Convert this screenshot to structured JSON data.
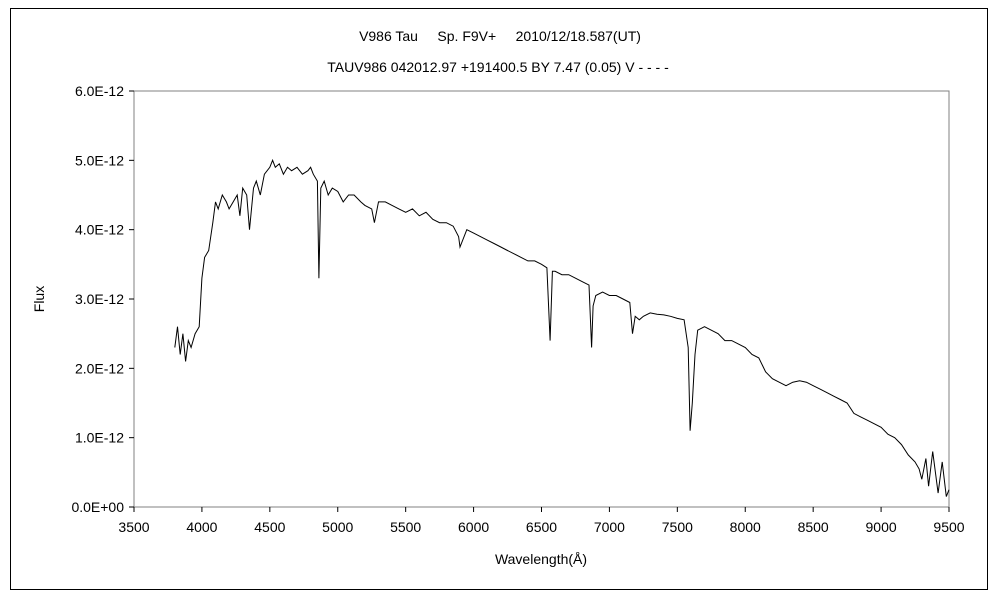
{
  "chart_data": {
    "type": "line",
    "title": "V986 Tau     Sp. F9V+     2010/12/18.587(UT)",
    "subtitle": "TAUV986 042012.97 +191400.5 BY 7.47 (0.05) V - - - -",
    "xlabel": "Wavelength(Å)",
    "ylabel": "Flux",
    "xlim": [
      3500,
      9500
    ],
    "ylim": [
      0,
      6e-12
    ],
    "xticks": [
      "3500",
      "4000",
      "4500",
      "5000",
      "5500",
      "6000",
      "6500",
      "7000",
      "7500",
      "8000",
      "8500",
      "9000",
      "9500"
    ],
    "yticks": [
      "0.0E+00",
      "1.0E-12",
      "2.0E-12",
      "3.0E-12",
      "4.0E-12",
      "5.0E-12",
      "6.0E-12"
    ],
    "grid": false,
    "series": [
      {
        "color": "#000000",
        "x": [
          3800,
          3820,
          3840,
          3860,
          3880,
          3900,
          3920,
          3950,
          3980,
          4000,
          4020,
          4050,
          4080,
          4100,
          4120,
          4150,
          4180,
          4200,
          4230,
          4260,
          4280,
          4300,
          4330,
          4350,
          4380,
          4400,
          4430,
          4460,
          4500,
          4520,
          4540,
          4570,
          4600,
          4630,
          4660,
          4700,
          4740,
          4780,
          4800,
          4820,
          4850,
          4861,
          4875,
          4900,
          4930,
          4960,
          5000,
          5040,
          5080,
          5120,
          5170,
          5200,
          5250,
          5270,
          5300,
          5350,
          5400,
          5450,
          5500,
          5550,
          5600,
          5650,
          5700,
          5750,
          5800,
          5850,
          5890,
          5900,
          5950,
          6000,
          6050,
          6100,
          6150,
          6200,
          6250,
          6300,
          6350,
          6400,
          6450,
          6500,
          6540,
          6563,
          6580,
          6600,
          6650,
          6700,
          6750,
          6800,
          6850,
          6869,
          6880,
          6900,
          6950,
          7000,
          7050,
          7100,
          7150,
          7170,
          7190,
          7220,
          7250,
          7300,
          7350,
          7400,
          7450,
          7500,
          7550,
          7580,
          7594,
          7610,
          7630,
          7650,
          7700,
          7750,
          7800,
          7850,
          7900,
          7950,
          8000,
          8050,
          8100,
          8150,
          8200,
          8250,
          8300,
          8350,
          8400,
          8450,
          8500,
          8550,
          8600,
          8650,
          8700,
          8750,
          8800,
          8850,
          8900,
          8950,
          9000,
          9050,
          9100,
          9150,
          9200,
          9250,
          9280,
          9300,
          9330,
          9350,
          9380,
          9400,
          9420,
          9450,
          9480,
          9500
        ],
        "values": [
          2.3e-12,
          2.6e-12,
          2.2e-12,
          2.5e-12,
          2.1e-12,
          2.4e-12,
          2.3e-12,
          2.5e-12,
          2.6e-12,
          3.3e-12,
          3.6e-12,
          3.7e-12,
          4.1e-12,
          4.4e-12,
          4.3e-12,
          4.5e-12,
          4.4e-12,
          4.3e-12,
          4.4e-12,
          4.5e-12,
          4.2e-12,
          4.6e-12,
          4.5e-12,
          4e-12,
          4.6e-12,
          4.7e-12,
          4.5e-12,
          4.8e-12,
          4.9e-12,
          5e-12,
          4.9e-12,
          4.95e-12,
          4.8e-12,
          4.9e-12,
          4.85e-12,
          4.9e-12,
          4.8e-12,
          4.85e-12,
          4.9e-12,
          4.8e-12,
          4.7e-12,
          3.3e-12,
          4.6e-12,
          4.7e-12,
          4.5e-12,
          4.6e-12,
          4.55e-12,
          4.4e-12,
          4.5e-12,
          4.5e-12,
          4.4e-12,
          4.35e-12,
          4.3e-12,
          4.1e-12,
          4.4e-12,
          4.4e-12,
          4.35e-12,
          4.3e-12,
          4.25e-12,
          4.3e-12,
          4.2e-12,
          4.25e-12,
          4.15e-12,
          4.1e-12,
          4.1e-12,
          4.05e-12,
          3.9e-12,
          3.75e-12,
          4e-12,
          3.95e-12,
          3.9e-12,
          3.85e-12,
          3.8e-12,
          3.75e-12,
          3.7e-12,
          3.65e-12,
          3.6e-12,
          3.55e-12,
          3.55e-12,
          3.5e-12,
          3.45e-12,
          2.4e-12,
          3.4e-12,
          3.4e-12,
          3.35e-12,
          3.35e-12,
          3.3e-12,
          3.25e-12,
          3.2e-12,
          2.3e-12,
          2.9e-12,
          3.05e-12,
          3.1e-12,
          3.05e-12,
          3.05e-12,
          3e-12,
          2.95e-12,
          2.5e-12,
          2.75e-12,
          2.7e-12,
          2.75e-12,
          2.8e-12,
          2.78e-12,
          2.77e-12,
          2.75e-12,
          2.72e-12,
          2.7e-12,
          2.3e-12,
          1.1e-12,
          1.5e-12,
          2.2e-12,
          2.55e-12,
          2.6e-12,
          2.55e-12,
          2.5e-12,
          2.4e-12,
          2.4e-12,
          2.35e-12,
          2.3e-12,
          2.2e-12,
          2.15e-12,
          1.95e-12,
          1.85e-12,
          1.8e-12,
          1.75e-12,
          1.8e-12,
          1.82e-12,
          1.8e-12,
          1.75e-12,
          1.7e-12,
          1.65e-12,
          1.6e-12,
          1.55e-12,
          1.5e-12,
          1.35e-12,
          1.3e-12,
          1.25e-12,
          1.2e-12,
          1.15e-12,
          1.05e-12,
          1e-12,
          9e-13,
          7.5e-13,
          6.5e-13,
          5.5e-13,
          4e-13,
          7e-13,
          3e-13,
          8e-13,
          5e-13,
          2e-13,
          6.5e-13,
          1.5e-13,
          2.5e-13
        ]
      }
    ]
  }
}
